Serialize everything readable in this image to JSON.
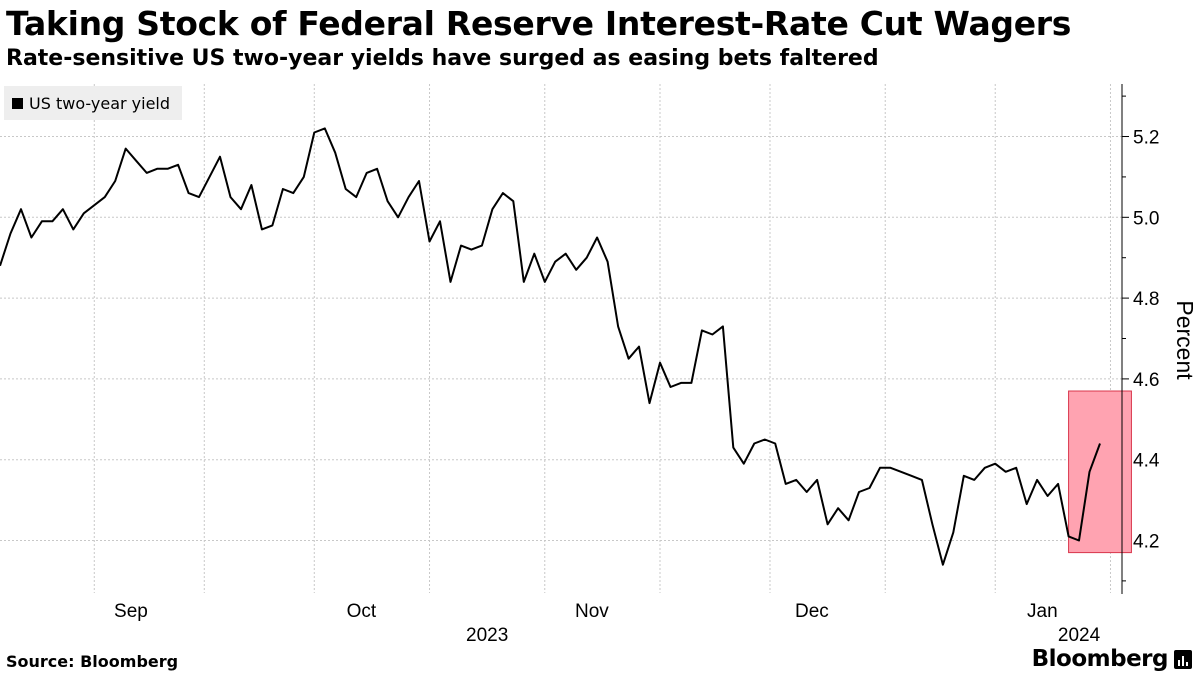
{
  "title": "Taking Stock of Federal Reserve Interest-Rate Cut Wagers",
  "subtitle": "Rate-sensitive US two-year yields have surged as easing bets faltered",
  "source": "Source: Bloomberg",
  "brand": "Bloomberg",
  "chart_data": {
    "type": "line",
    "series": [
      {
        "name": "US two-year yield",
        "color": "#000000",
        "values": [
          4.88,
          4.96,
          5.02,
          4.95,
          4.99,
          4.99,
          5.02,
          4.97,
          5.01,
          5.03,
          5.05,
          5.09,
          5.17,
          5.14,
          5.11,
          5.12,
          5.12,
          5.13,
          5.06,
          5.05,
          5.1,
          5.15,
          5.05,
          5.02,
          5.08,
          4.97,
          4.98,
          5.07,
          5.06,
          5.1,
          5.21,
          5.22,
          5.16,
          5.07,
          5.05,
          5.11,
          5.12,
          5.04,
          5.0,
          5.05,
          5.09,
          4.94,
          4.99,
          4.84,
          4.93,
          4.92,
          4.93,
          5.02,
          5.06,
          5.04,
          4.84,
          4.91,
          4.84,
          4.89,
          4.91,
          4.87,
          4.9,
          4.95,
          4.89,
          4.73,
          4.65,
          4.68,
          4.54,
          4.64,
          4.58,
          4.59,
          4.59,
          4.72,
          4.71,
          4.73,
          4.43,
          4.39,
          4.44,
          4.45,
          4.44,
          4.34,
          4.35,
          4.32,
          4.35,
          4.24,
          4.28,
          4.25,
          4.32,
          4.33,
          4.38,
          4.38,
          4.37,
          4.36,
          4.35,
          4.24,
          4.14,
          4.22,
          4.36,
          4.35,
          4.38,
          4.39,
          4.37,
          4.38,
          4.29,
          4.35,
          4.31,
          4.34,
          4.21,
          4.2,
          4.37,
          4.44
        ]
      }
    ],
    "x_tick_labels": [
      "Sep",
      "Oct",
      "Nov",
      "Dec",
      "Jan"
    ],
    "x_tick_indices": [
      12.5,
      34.5,
      56.5,
      77.5,
      99.5
    ],
    "x_minor_tick_indices": [
      9,
      19.5,
      30,
      41,
      52,
      63,
      73.5,
      84.5,
      95,
      106
    ],
    "year_labels": [
      {
        "text": "2023",
        "at": 46.5
      },
      {
        "text": "2024",
        "at": 103
      }
    ],
    "y_ticks": [
      4.2,
      4.4,
      4.6,
      4.8,
      5.0,
      5.2
    ],
    "y_tick_labels": [
      "4.2",
      "4.4",
      "4.6",
      "4.8",
      "5.0",
      "5.2"
    ],
    "ylabel": "Percent",
    "ylim": [
      4.07,
      5.33
    ],
    "grid": true,
    "legend_position": "top-left",
    "highlight": {
      "x_range": [
        102,
        108
      ],
      "y_range": [
        4.17,
        4.57
      ],
      "color": "#ffa3b1"
    }
  }
}
